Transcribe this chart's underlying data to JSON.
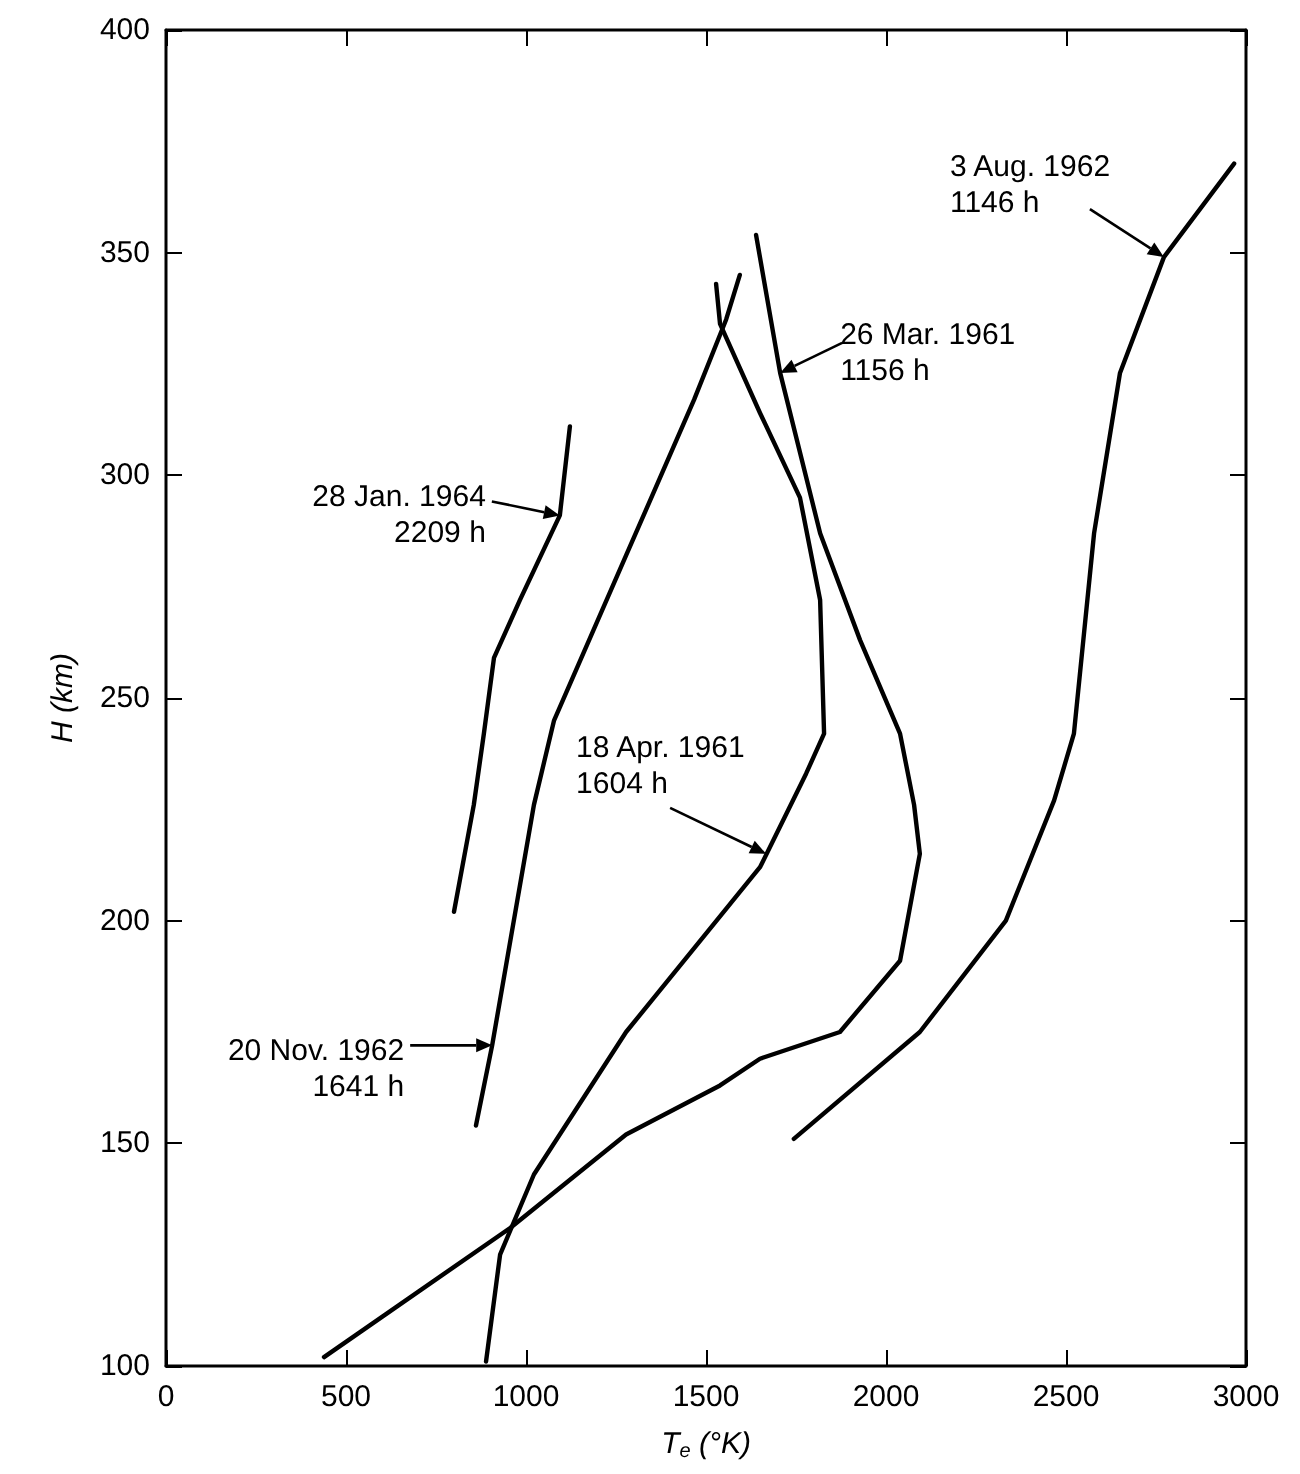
{
  "chart_data": {
    "type": "line",
    "xlabel": "T$_{e}$ (°K)",
    "ylabel": "H (km)",
    "xlim": [
      0,
      3000
    ],
    "xticks": [
      0,
      500,
      1000,
      1500,
      2000,
      2500,
      3000
    ],
    "ylim": [
      100,
      400
    ],
    "yticks": [
      100,
      150,
      200,
      250,
      300,
      350,
      400
    ],
    "grid": false,
    "marker": "none",
    "line_style": "solid",
    "series": [
      {
        "color": "#000000",
        "x": [
          800,
          855,
          883,
          911,
          983,
          1094,
          1122
        ],
        "values": [
          202,
          226,
          242,
          259,
          272,
          291,
          311
        ]
      },
      {
        "color": "#000000",
        "x": [
          861,
          906,
          1022,
          1078,
          1278,
          1467,
          1556,
          1594
        ],
        "values": [
          154,
          172,
          226,
          245,
          282,
          317,
          335,
          345
        ]
      },
      {
        "color": "#000000",
        "x": [
          889,
          928,
          1022,
          1278,
          1650,
          1778,
          1828,
          1817,
          1761,
          1650,
          1539,
          1528
        ],
        "values": [
          101,
          125,
          143,
          175,
          212,
          233,
          242,
          272,
          295,
          314,
          334,
          343
        ]
      },
      {
        "color": "#000000",
        "x": [
          439,
          956,
          1278,
          1539,
          1650,
          1872,
          2039,
          2094,
          2078,
          2039,
          1928,
          1817,
          1706,
          1639
        ],
        "values": [
          102,
          131,
          152,
          163,
          169,
          175,
          191,
          215,
          226,
          242,
          263,
          287,
          323,
          354
        ]
      },
      {
        "color": "#000000",
        "x": [
          1744,
          2094,
          2333,
          2467,
          2522,
          2578,
          2650,
          2772,
          2967
        ],
        "values": [
          151,
          175,
          200,
          227,
          242,
          287,
          323,
          349,
          370
        ]
      }
    ],
    "annotations": [
      {
        "text": "28 Jan. 1964\n2209 h",
        "x": 1094,
        "y": 291
      },
      {
        "text": "20 Nov. 1962\n1641 h",
        "x": 906,
        "y": 172
      },
      {
        "text": "18 Apr. 1961\n1604 h",
        "x": 1667,
        "y": 215
      },
      {
        "text": "26 Mar. 1961\n1156 h",
        "x": 1706,
        "y": 323
      },
      {
        "text": "3 Aug. 1962\n1146 h",
        "x": 2772,
        "y": 349
      }
    ]
  }
}
